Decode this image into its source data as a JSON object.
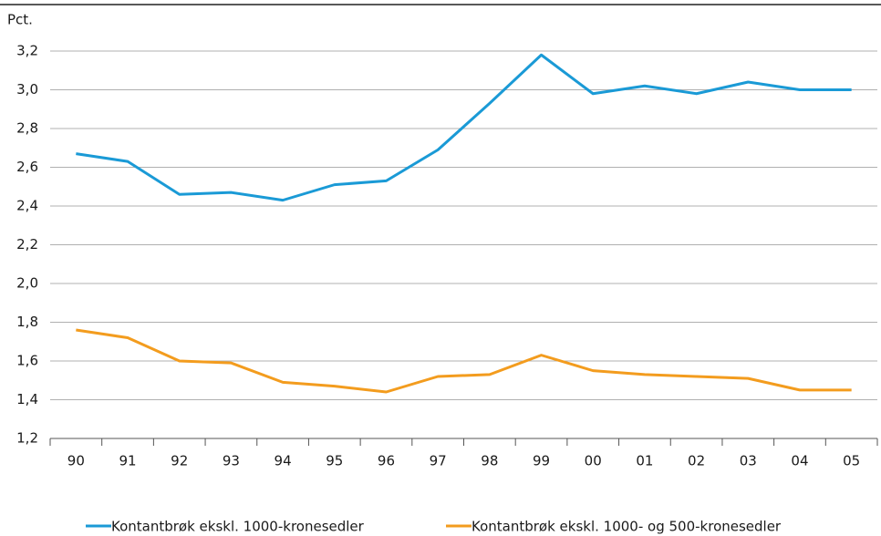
{
  "chart_data": {
    "type": "line",
    "ylabel": "Pct.",
    "categories": [
      "90",
      "91",
      "92",
      "93",
      "94",
      "95",
      "96",
      "97",
      "98",
      "99",
      "00",
      "01",
      "02",
      "03",
      "04",
      "05"
    ],
    "series": [
      {
        "name": "Kontantbrøk ekskl. 1000-kronesedler",
        "color": "#1a9ad6",
        "values": [
          2.67,
          2.63,
          2.46,
          2.47,
          2.43,
          2.51,
          2.53,
          2.69,
          2.93,
          3.18,
          2.98,
          3.02,
          2.98,
          3.04,
          3.0,
          3.0
        ]
      },
      {
        "name": "Kontantbrøk ekskl. 1000- og 500-kronesedler",
        "color": "#f39c1e",
        "values": [
          1.76,
          1.72,
          1.6,
          1.59,
          1.49,
          1.47,
          1.44,
          1.52,
          1.53,
          1.63,
          1.55,
          1.53,
          1.52,
          1.51,
          1.45,
          1.45
        ]
      }
    ],
    "ylim": [
      1.2,
      3.3
    ],
    "yticks": [
      {
        "value": 1.2,
        "label": "1,2"
      },
      {
        "value": 1.4,
        "label": "1,4"
      },
      {
        "value": 1.6,
        "label": "1,6"
      },
      {
        "value": 1.8,
        "label": "1,8"
      },
      {
        "value": 2.0,
        "label": "2,0"
      },
      {
        "value": 2.2,
        "label": "2,2"
      },
      {
        "value": 2.4,
        "label": "2,4"
      },
      {
        "value": 2.6,
        "label": "2,6"
      },
      {
        "value": 2.8,
        "label": "2,8"
      },
      {
        "value": 3.0,
        "label": "3,0"
      },
      {
        "value": 3.2,
        "label": "3,2"
      }
    ],
    "grid": true
  }
}
